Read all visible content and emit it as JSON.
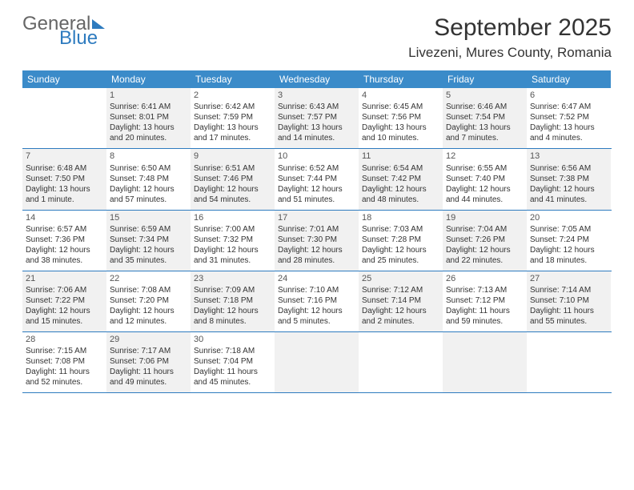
{
  "logo": {
    "part1": "General",
    "part2": "Blue"
  },
  "title": "September 2025",
  "location": "Livezeni, Mures County, Romania",
  "day_names": [
    "Sunday",
    "Monday",
    "Tuesday",
    "Wednesday",
    "Thursday",
    "Friday",
    "Saturday"
  ],
  "colors": {
    "header_bg": "#3b8bc9",
    "header_text": "#ffffff",
    "rule": "#2e7bbf",
    "alt_bg": "#f1f1f1",
    "text": "#333333",
    "logo_gray": "#666666",
    "logo_blue": "#2e7bbf"
  },
  "weeks": [
    [
      {
        "n": "",
        "alt": false
      },
      {
        "n": "1",
        "alt": true,
        "sr": "Sunrise: 6:41 AM",
        "ss": "Sunset: 8:01 PM",
        "dl": "Daylight: 13 hours and 20 minutes."
      },
      {
        "n": "2",
        "alt": false,
        "sr": "Sunrise: 6:42 AM",
        "ss": "Sunset: 7:59 PM",
        "dl": "Daylight: 13 hours and 17 minutes."
      },
      {
        "n": "3",
        "alt": true,
        "sr": "Sunrise: 6:43 AM",
        "ss": "Sunset: 7:57 PM",
        "dl": "Daylight: 13 hours and 14 minutes."
      },
      {
        "n": "4",
        "alt": false,
        "sr": "Sunrise: 6:45 AM",
        "ss": "Sunset: 7:56 PM",
        "dl": "Daylight: 13 hours and 10 minutes."
      },
      {
        "n": "5",
        "alt": true,
        "sr": "Sunrise: 6:46 AM",
        "ss": "Sunset: 7:54 PM",
        "dl": "Daylight: 13 hours and 7 minutes."
      },
      {
        "n": "6",
        "alt": false,
        "sr": "Sunrise: 6:47 AM",
        "ss": "Sunset: 7:52 PM",
        "dl": "Daylight: 13 hours and 4 minutes."
      }
    ],
    [
      {
        "n": "7",
        "alt": true,
        "sr": "Sunrise: 6:48 AM",
        "ss": "Sunset: 7:50 PM",
        "dl": "Daylight: 13 hours and 1 minute."
      },
      {
        "n": "8",
        "alt": false,
        "sr": "Sunrise: 6:50 AM",
        "ss": "Sunset: 7:48 PM",
        "dl": "Daylight: 12 hours and 57 minutes."
      },
      {
        "n": "9",
        "alt": true,
        "sr": "Sunrise: 6:51 AM",
        "ss": "Sunset: 7:46 PM",
        "dl": "Daylight: 12 hours and 54 minutes."
      },
      {
        "n": "10",
        "alt": false,
        "sr": "Sunrise: 6:52 AM",
        "ss": "Sunset: 7:44 PM",
        "dl": "Daylight: 12 hours and 51 minutes."
      },
      {
        "n": "11",
        "alt": true,
        "sr": "Sunrise: 6:54 AM",
        "ss": "Sunset: 7:42 PM",
        "dl": "Daylight: 12 hours and 48 minutes."
      },
      {
        "n": "12",
        "alt": false,
        "sr": "Sunrise: 6:55 AM",
        "ss": "Sunset: 7:40 PM",
        "dl": "Daylight: 12 hours and 44 minutes."
      },
      {
        "n": "13",
        "alt": true,
        "sr": "Sunrise: 6:56 AM",
        "ss": "Sunset: 7:38 PM",
        "dl": "Daylight: 12 hours and 41 minutes."
      }
    ],
    [
      {
        "n": "14",
        "alt": false,
        "sr": "Sunrise: 6:57 AM",
        "ss": "Sunset: 7:36 PM",
        "dl": "Daylight: 12 hours and 38 minutes."
      },
      {
        "n": "15",
        "alt": true,
        "sr": "Sunrise: 6:59 AM",
        "ss": "Sunset: 7:34 PM",
        "dl": "Daylight: 12 hours and 35 minutes."
      },
      {
        "n": "16",
        "alt": false,
        "sr": "Sunrise: 7:00 AM",
        "ss": "Sunset: 7:32 PM",
        "dl": "Daylight: 12 hours and 31 minutes."
      },
      {
        "n": "17",
        "alt": true,
        "sr": "Sunrise: 7:01 AM",
        "ss": "Sunset: 7:30 PM",
        "dl": "Daylight: 12 hours and 28 minutes."
      },
      {
        "n": "18",
        "alt": false,
        "sr": "Sunrise: 7:03 AM",
        "ss": "Sunset: 7:28 PM",
        "dl": "Daylight: 12 hours and 25 minutes."
      },
      {
        "n": "19",
        "alt": true,
        "sr": "Sunrise: 7:04 AM",
        "ss": "Sunset: 7:26 PM",
        "dl": "Daylight: 12 hours and 22 minutes."
      },
      {
        "n": "20",
        "alt": false,
        "sr": "Sunrise: 7:05 AM",
        "ss": "Sunset: 7:24 PM",
        "dl": "Daylight: 12 hours and 18 minutes."
      }
    ],
    [
      {
        "n": "21",
        "alt": true,
        "sr": "Sunrise: 7:06 AM",
        "ss": "Sunset: 7:22 PM",
        "dl": "Daylight: 12 hours and 15 minutes."
      },
      {
        "n": "22",
        "alt": false,
        "sr": "Sunrise: 7:08 AM",
        "ss": "Sunset: 7:20 PM",
        "dl": "Daylight: 12 hours and 12 minutes."
      },
      {
        "n": "23",
        "alt": true,
        "sr": "Sunrise: 7:09 AM",
        "ss": "Sunset: 7:18 PM",
        "dl": "Daylight: 12 hours and 8 minutes."
      },
      {
        "n": "24",
        "alt": false,
        "sr": "Sunrise: 7:10 AM",
        "ss": "Sunset: 7:16 PM",
        "dl": "Daylight: 12 hours and 5 minutes."
      },
      {
        "n": "25",
        "alt": true,
        "sr": "Sunrise: 7:12 AM",
        "ss": "Sunset: 7:14 PM",
        "dl": "Daylight: 12 hours and 2 minutes."
      },
      {
        "n": "26",
        "alt": false,
        "sr": "Sunrise: 7:13 AM",
        "ss": "Sunset: 7:12 PM",
        "dl": "Daylight: 11 hours and 59 minutes."
      },
      {
        "n": "27",
        "alt": true,
        "sr": "Sunrise: 7:14 AM",
        "ss": "Sunset: 7:10 PM",
        "dl": "Daylight: 11 hours and 55 minutes."
      }
    ],
    [
      {
        "n": "28",
        "alt": false,
        "sr": "Sunrise: 7:15 AM",
        "ss": "Sunset: 7:08 PM",
        "dl": "Daylight: 11 hours and 52 minutes."
      },
      {
        "n": "29",
        "alt": true,
        "sr": "Sunrise: 7:17 AM",
        "ss": "Sunset: 7:06 PM",
        "dl": "Daylight: 11 hours and 49 minutes."
      },
      {
        "n": "30",
        "alt": false,
        "sr": "Sunrise: 7:18 AM",
        "ss": "Sunset: 7:04 PM",
        "dl": "Daylight: 11 hours and 45 minutes."
      },
      {
        "n": "",
        "alt": true
      },
      {
        "n": "",
        "alt": false
      },
      {
        "n": "",
        "alt": true
      },
      {
        "n": "",
        "alt": false
      }
    ]
  ]
}
